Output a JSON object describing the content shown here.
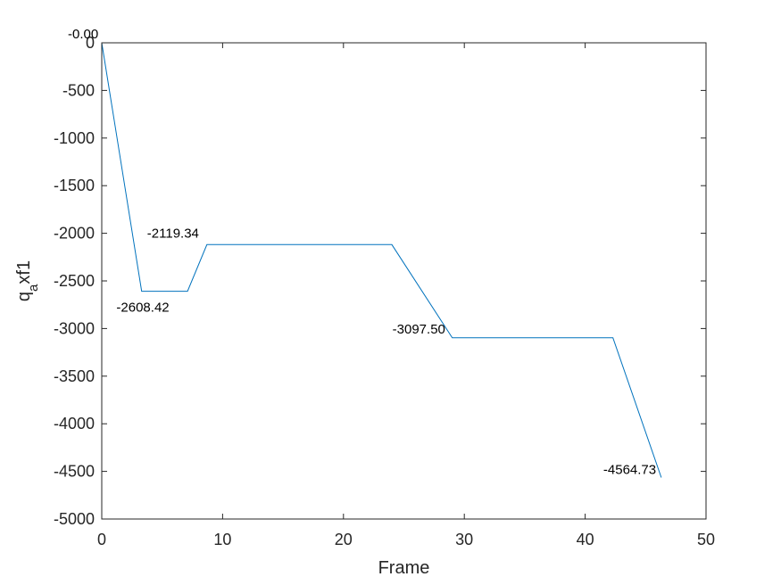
{
  "chart_data": {
    "type": "line",
    "title": "",
    "xlabel": "Frame",
    "ylabel_base": "q",
    "ylabel_sub": "a",
    "ylabel_rest": "xf1",
    "xlim": [
      0,
      50
    ],
    "ylim": [
      -5000,
      0
    ],
    "xticks": [
      0,
      10,
      20,
      30,
      40,
      50
    ],
    "yticks": [
      0,
      -500,
      -1000,
      -1500,
      -2000,
      -2500,
      -3000,
      -3500,
      -4000,
      -4500,
      -5000
    ],
    "xtick_labels": [
      "0",
      "10",
      "20",
      "30",
      "40",
      "50"
    ],
    "ytick_labels": [
      "0",
      "-500",
      "-1000",
      "-1500",
      "-2000",
      "-2500",
      "-3000",
      "-3500",
      "-4000",
      "-4500",
      "-5000"
    ],
    "grid": false,
    "series": [
      {
        "color": "#0072BD",
        "x": [
          0,
          3.3,
          7.1,
          8.7,
          24.0,
          29.0,
          42.3,
          46.3
        ],
        "y": [
          0,
          -2608.42,
          -2608.42,
          -2119.34,
          -2119.34,
          -3097.5,
          -3097.5,
          -4564.73
        ]
      }
    ],
    "annotations": [
      {
        "text": "-0.00",
        "x": 0,
        "y": 0
      },
      {
        "text": "-2608.42",
        "x": 5.2,
        "y": -2608.42
      },
      {
        "text": "-2119.34",
        "x": 8.7,
        "y": -2119.34
      },
      {
        "text": "-3097.50",
        "x": 29.0,
        "y": -3097.5
      },
      {
        "text": "-4564.73",
        "x": 46.3,
        "y": -4564.73
      }
    ]
  }
}
